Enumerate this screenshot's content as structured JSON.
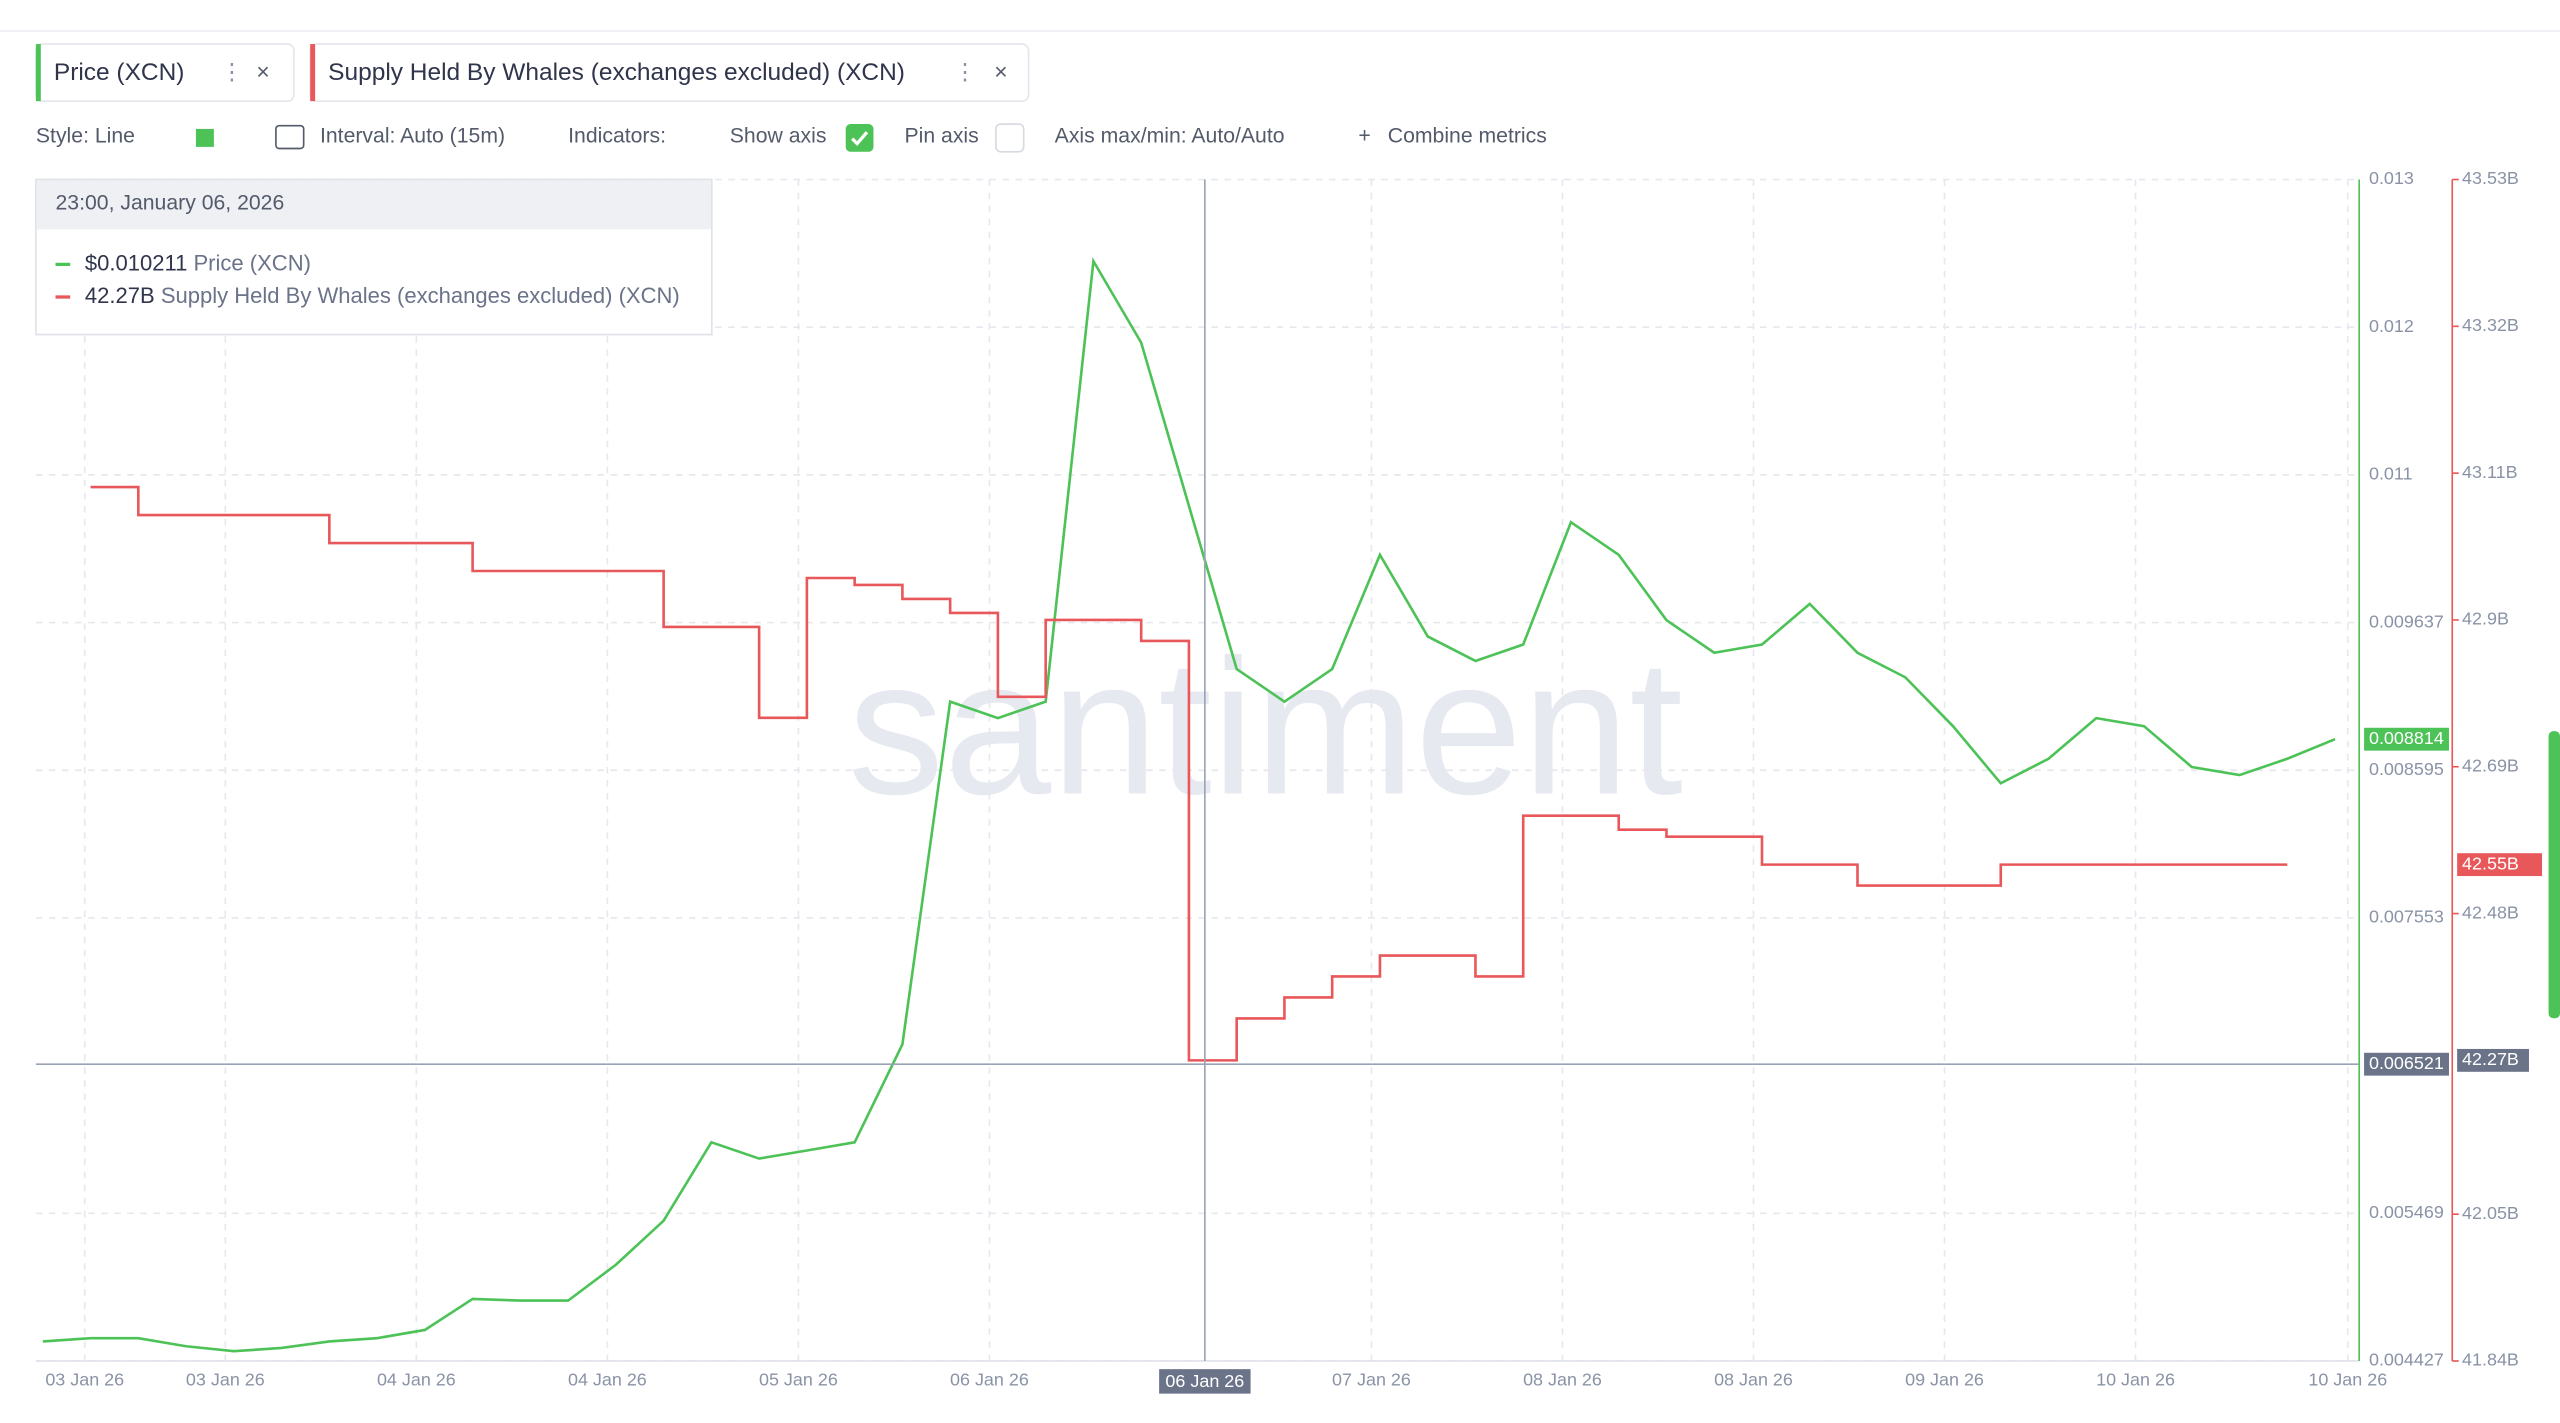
{
  "tabs": {
    "toolbar": {
      "style": "Style: Line",
      "interval": "Interval: Auto (15m)",
      "indicators": "Indicators:",
      "show_axis": "Show axis",
      "pin_axis": "Pin axis",
      "axis_minmax": "Axis max/min: Auto/Auto",
      "combine": "Combine metrics"
    }
  },
  "watermark": "santiment",
  "chart_data": {
    "type": "line",
    "x": [
      "2026-01-03T22:00",
      "2026-01-04T01:00",
      "2026-01-04T04:00",
      "2026-01-04T07:00",
      "2026-01-04T10:00",
      "2026-01-04T13:00",
      "2026-01-04T16:00",
      "2026-01-04T19:00",
      "2026-01-04T22:00",
      "2026-01-05T01:00",
      "2026-01-05T04:00",
      "2026-01-05T07:00",
      "2026-01-05T10:00",
      "2026-01-05T13:00",
      "2026-01-05T16:00",
      "2026-01-05T19:00",
      "2026-01-05T22:00",
      "2026-01-06T01:00",
      "2026-01-06T04:00",
      "2026-01-06T07:00",
      "2026-01-06T10:00",
      "2026-01-06T13:00",
      "2026-01-06T16:00",
      "2026-01-06T19:00",
      "2026-01-06T22:00",
      "2026-01-07T01:00",
      "2026-01-07T04:00",
      "2026-01-07T07:00",
      "2026-01-07T10:00",
      "2026-01-07T13:00",
      "2026-01-07T16:00",
      "2026-01-07T19:00",
      "2026-01-07T22:00",
      "2026-01-08T01:00",
      "2026-01-08T04:00",
      "2026-01-08T07:00",
      "2026-01-08T10:00",
      "2026-01-08T13:00",
      "2026-01-08T16:00",
      "2026-01-08T19:00",
      "2026-01-08T22:00",
      "2026-01-09T01:00",
      "2026-01-09T04:00",
      "2026-01-09T07:00",
      "2026-01-09T10:00",
      "2026-01-09T13:00",
      "2026-01-09T16:00",
      "2026-01-09T19:00",
      "2026-01-09T22:00"
    ],
    "series": [
      {
        "name": "Price (XCN)",
        "color": "#4cc257",
        "values": [
          0.004565,
          0.004588,
          0.004588,
          0.004531,
          0.004496,
          0.004519,
          0.004565,
          0.004588,
          0.004646,
          0.004865,
          0.004853,
          0.004853,
          0.005106,
          0.005417,
          0.00597,
          0.005855,
          0.005912,
          0.00597,
          0.006661,
          0.009079,
          0.008963,
          0.009079,
          0.012187,
          0.011612,
          0.01046,
          0.009309,
          0.009079,
          0.009309,
          0.010115,
          0.009539,
          0.009366,
          0.009482,
          0.010345,
          0.010115,
          0.009654,
          0.009424,
          0.009482,
          0.009769,
          0.009424,
          0.009251,
          0.008906,
          0.008503,
          0.008676,
          0.008963,
          0.008906,
          0.008618,
          0.008561,
          0.008676,
          0.008814
        ],
        "last_label": {
          "value": 0.008814,
          "label": "0.008814"
        }
      },
      {
        "name": "Supply Held By Whales (exchanges excluded) (XCN)",
        "color": "#e8585a",
        "axis": "y2",
        "step": true,
        "values": [
          null,
          43.09,
          43.05,
          43.05,
          43.05,
          43.05,
          43.01,
          43.01,
          43.01,
          42.97,
          42.97,
          42.97,
          42.97,
          42.89,
          42.89,
          42.76,
          42.96,
          42.95,
          42.93,
          42.91,
          42.79,
          42.9,
          42.9,
          42.87,
          42.27,
          42.33,
          42.36,
          42.39,
          42.42,
          42.42,
          42.39,
          42.62,
          42.62,
          42.6,
          42.59,
          42.59,
          42.55,
          42.55,
          42.52,
          42.52,
          42.52,
          42.55,
          42.55,
          42.55,
          42.55,
          42.55,
          42.55,
          42.55,
          null
        ],
        "last_label": {
          "value": 42.55,
          "label": "42.55B"
        }
      }
    ],
    "xlim": [
      "2026-01-03T21:34",
      "2026-01-09T23:31"
    ],
    "xticks": [
      {
        "value": "2026-01-04T00:38",
        "label": "03 Jan 26"
      },
      {
        "value": "2026-01-04T09:28",
        "label": "03 Jan 26"
      },
      {
        "value": "2026-01-04T21:28",
        "label": "04 Jan 26"
      },
      {
        "value": "2026-01-05T09:28",
        "label": "04 Jan 26"
      },
      {
        "value": "2026-01-05T21:28",
        "label": "05 Jan 26"
      },
      {
        "value": "2026-01-06T09:28",
        "label": "06 Jan 26"
      },
      {
        "value": "2026-01-07T09:28",
        "label": "07 Jan 26"
      },
      {
        "value": "2026-01-07T21:28",
        "label": "08 Jan 26"
      },
      {
        "value": "2026-01-08T09:28",
        "label": "08 Jan 26"
      },
      {
        "value": "2026-01-08T21:28",
        "label": "09 Jan 26"
      },
      {
        "value": "2026-01-09T09:28",
        "label": "10 Jan 26"
      },
      {
        "value": "2026-01-09T22:48",
        "label": "10 Jan 26"
      }
    ],
    "ylim": [
      0.004427,
      0.012763
    ],
    "yticks": [
      {
        "value": 0.012763,
        "label": "0.013"
      },
      {
        "value": 0.011721,
        "label": "0.012"
      },
      {
        "value": 0.010679,
        "label": "0.011"
      },
      0.009637,
      0.008595,
      0.007553,
      0.005469,
      0.004427
    ],
    "y2lim": [
      41.84,
      43.53
    ],
    "y2ticks": [
      {
        "value": 43.53,
        "label": "43.53B"
      },
      {
        "value": 43.32,
        "label": "43.32B"
      },
      {
        "value": 43.11,
        "label": "43.11B"
      },
      {
        "value": 42.9,
        "label": "42.9B"
      },
      {
        "value": 42.69,
        "label": "42.69B"
      },
      {
        "value": 42.48,
        "label": "42.48B"
      },
      {
        "value": 42.05,
        "label": "42.05B"
      },
      {
        "value": 41.84,
        "label": "41.84B"
      }
    ],
    "grid": true,
    "crosshair": {
      "x": {
        "value": "2026-01-06T23:00",
        "label": "06 Jan 26"
      },
      "y": {
        "value": 0.006521,
        "label": "0.006521"
      },
      "y2": {
        "value": 42.27,
        "label": "42.27B"
      }
    },
    "tooltip": {
      "title": "23:00, January 06, 2026",
      "items": [
        {
          "value": 0.010211,
          "label": "$0.010211"
        },
        {
          "value": 42.27,
          "label": "42.27B"
        }
      ]
    }
  }
}
